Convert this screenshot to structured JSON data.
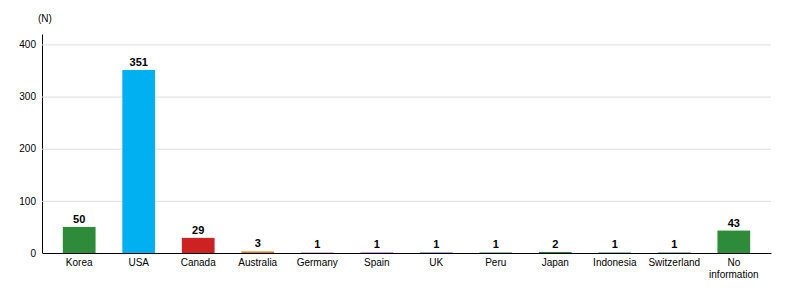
{
  "chart_data": {
    "type": "bar",
    "ylabel": "(N)",
    "categories": [
      "Korea",
      "USA",
      "Canada",
      "Australia",
      "Germany",
      "Spain",
      "UK",
      "Peru",
      "Japan",
      "Indonesia",
      "Switzerland",
      "No\ninformation"
    ],
    "values": [
      50,
      351,
      29,
      3,
      1,
      1,
      1,
      1,
      2,
      1,
      1,
      43
    ],
    "colors": [
      "#2e8b3a",
      "#00b0f0",
      "#cc2222",
      "#d4820a",
      "#d966a0",
      "#8844cc",
      "#4455aa",
      "#228844",
      "#228844",
      "#228844",
      "#228844",
      "#2e8b3a"
    ],
    "ylim": [
      0,
      420
    ],
    "yticks": [
      0,
      100,
      200,
      300,
      400
    ],
    "grid": true,
    "data_labels": true
  }
}
